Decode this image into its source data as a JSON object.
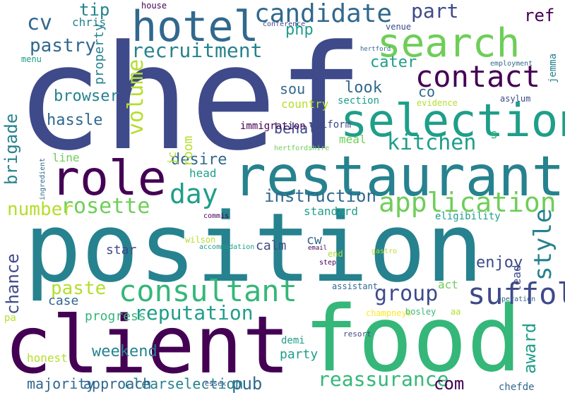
{
  "palette": {
    "dark-purple": "#440154",
    "indigo": "#3e4a89",
    "blue": "#31688e",
    "teal": "#26828e",
    "green-teal": "#1f9e89",
    "green": "#35b779",
    "light-green": "#6ece58",
    "lime": "#b5de2b",
    "yellow": "#fde725"
  },
  "words": [
    {
      "text": "chef"
    },
    {
      "text": "position"
    },
    {
      "text": "food"
    },
    {
      "text": "client"
    },
    {
      "text": "restaurant"
    },
    {
      "text": "selection"
    },
    {
      "text": "role"
    },
    {
      "text": "search"
    },
    {
      "text": "hotel"
    },
    {
      "text": "consultant"
    },
    {
      "text": "contact"
    },
    {
      "text": "candidate"
    },
    {
      "text": "application"
    },
    {
      "text": "day"
    },
    {
      "text": "recruitment"
    },
    {
      "text": "kitchen"
    },
    {
      "text": "rosette"
    },
    {
      "text": "reputation"
    },
    {
      "text": "group"
    },
    {
      "text": "reassurance"
    },
    {
      "text": "part"
    },
    {
      "text": "cv"
    },
    {
      "text": "pastry"
    },
    {
      "text": "tip"
    },
    {
      "text": "cater"
    },
    {
      "text": "look"
    },
    {
      "text": "instruction"
    },
    {
      "text": "desire"
    },
    {
      "text": "number"
    },
    {
      "text": "paste"
    },
    {
      "text": "pub"
    },
    {
      "text": "com"
    },
    {
      "text": "clearselection"
    },
    {
      "text": "majority"
    },
    {
      "text": "approach"
    },
    {
      "text": "weekend"
    },
    {
      "text": "honest"
    },
    {
      "text": "browser"
    },
    {
      "text": "hassle"
    },
    {
      "text": "ref"
    },
    {
      "text": "php"
    },
    {
      "text": "suffolk"
    },
    {
      "text": "enjoy"
    },
    {
      "text": "behalf"
    },
    {
      "text": "sou"
    },
    {
      "text": "co"
    },
    {
      "text": "s"
    },
    {
      "text": "cw"
    },
    {
      "text": "calm"
    },
    {
      "text": "star"
    },
    {
      "text": "case"
    },
    {
      "text": "progress"
    },
    {
      "text": "party"
    },
    {
      "text": "demi"
    },
    {
      "text": "act"
    },
    {
      "text": "standard"
    },
    {
      "text": "head"
    },
    {
      "text": "line"
    },
    {
      "text": "meal"
    },
    {
      "text": "uniform"
    },
    {
      "text": "immigration"
    },
    {
      "text": "country"
    },
    {
      "text": "section"
    },
    {
      "text": "evidence"
    },
    {
      "text": "asylum"
    },
    {
      "text": "venue"
    },
    {
      "text": "chris"
    },
    {
      "text": "menu"
    },
    {
      "text": "house"
    },
    {
      "text": "conference"
    },
    {
      "text": "hertford"
    },
    {
      "text": "employment"
    },
    {
      "text": "hertfordshire"
    },
    {
      "text": "commis"
    },
    {
      "text": "wilson"
    },
    {
      "text": "accommodation"
    },
    {
      "text": "email"
    },
    {
      "text": "step"
    },
    {
      "text": "end"
    },
    {
      "text": "gastro"
    },
    {
      "text": "eligibility"
    },
    {
      "text": "assistant"
    },
    {
      "text": "champneys"
    },
    {
      "text": "bosley"
    },
    {
      "text": "aa"
    },
    {
      "text": "operation"
    },
    {
      "text": "resort"
    },
    {
      "text": "pa"
    },
    {
      "text": "essex"
    },
    {
      "text": "chefde"
    },
    {
      "text": "style"
    },
    {
      "text": "volume"
    },
    {
      "text": "brigade"
    },
    {
      "text": "chance"
    },
    {
      "text": "award"
    },
    {
      "text": "lead"
    },
    {
      "text": "room"
    },
    {
      "text": "jc"
    },
    {
      "text": "property"
    },
    {
      "text": "jemma"
    },
    {
      "text": "ingredient"
    }
  ]
}
